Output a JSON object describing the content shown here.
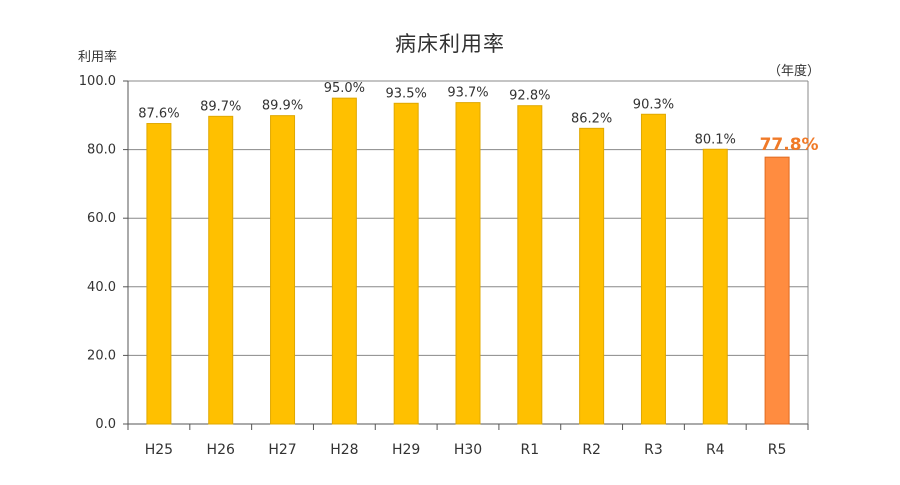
{
  "chart_data": {
    "type": "bar",
    "title": "病床利用率",
    "ylabel": "利用率",
    "unit_note": "（年度）",
    "categories": [
      "H25",
      "H26",
      "H27",
      "H28",
      "H29",
      "H30",
      "R1",
      "R2",
      "R3",
      "R4",
      "R5"
    ],
    "values": [
      87.6,
      89.7,
      89.9,
      95.0,
      93.5,
      93.7,
      92.8,
      86.2,
      90.3,
      80.1,
      77.8
    ],
    "data_labels": [
      "87.6%",
      "89.7%",
      "89.9%",
      "95.0%",
      "93.5%",
      "93.7%",
      "92.8%",
      "86.2%",
      "90.3%",
      "80.1%",
      "77.8%"
    ],
    "highlight_index": 10,
    "ylim": [
      0,
      100
    ],
    "yticks": [
      0,
      20,
      40,
      60,
      80,
      100
    ],
    "ytick_labels": [
      "0.0",
      "20.0",
      "40.0",
      "60.0",
      "80.0",
      "100.0"
    ],
    "grid": true,
    "colors": {
      "bar": "#ffc000",
      "bar_stroke": "#e0a800",
      "highlight": "#ff8c40",
      "highlight_stroke": "#e06a20",
      "highlight_label": "#f07a28",
      "grid": "#888888"
    }
  }
}
